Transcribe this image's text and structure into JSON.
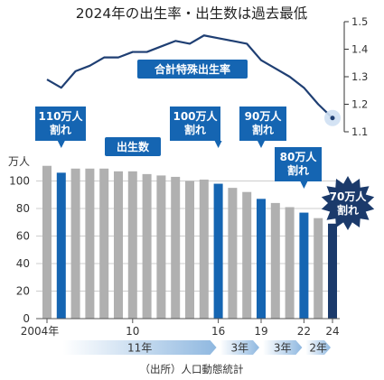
{
  "chart_data": {
    "type": "bar+line",
    "title": "2024年の出生率・出生数は過去最低",
    "bars": {
      "name": "出生数",
      "unit": "万人",
      "ylim": [
        0,
        120
      ],
      "yticks": [
        0,
        20,
        40,
        60,
        80,
        100
      ],
      "x": [
        2004,
        2005,
        2006,
        2007,
        2008,
        2009,
        2010,
        2011,
        2012,
        2013,
        2014,
        2015,
        2016,
        2017,
        2018,
        2019,
        2020,
        2021,
        2022,
        2023,
        2024
      ],
      "values": [
        111,
        106,
        109,
        109,
        109,
        107,
        107,
        105,
        104,
        103,
        100,
        101,
        98,
        95,
        92,
        87,
        84,
        81,
        77,
        73,
        69
      ],
      "highlight_years": [
        2005,
        2016,
        2019,
        2022
      ]
    },
    "line": {
      "name": "合計特殊出生率",
      "ylim": [
        1.1,
        1.5
      ],
      "yticks": [
        "1.1",
        "1.2",
        "1.3",
        "1.4",
        "1.5"
      ],
      "x": [
        2004,
        2005,
        2006,
        2007,
        2008,
        2009,
        2010,
        2011,
        2012,
        2013,
        2014,
        2015,
        2016,
        2017,
        2018,
        2019,
        2020,
        2021,
        2022,
        2023,
        2024
      ],
      "values": [
        1.29,
        1.26,
        1.32,
        1.34,
        1.37,
        1.37,
        1.39,
        1.39,
        1.41,
        1.43,
        1.42,
        1.45,
        1.44,
        1.43,
        1.42,
        1.36,
        1.33,
        1.3,
        1.26,
        1.2,
        1.15
      ]
    },
    "xtick_labels": [
      {
        "year": 2004,
        "label": "2004年"
      },
      {
        "year": 2010,
        "label": "10"
      },
      {
        "year": 2016,
        "label": "16"
      },
      {
        "year": 2019,
        "label": "19"
      },
      {
        "year": 2022,
        "label": "22"
      },
      {
        "year": 2024,
        "label": "24"
      }
    ],
    "callouts": [
      {
        "year": 2005,
        "lines": [
          "110万人",
          "割れ"
        ]
      },
      {
        "year": 2016,
        "lines": [
          "100万人",
          "割れ"
        ]
      },
      {
        "year": 2019,
        "lines": [
          "90万人",
          "割れ"
        ]
      },
      {
        "year": 2022,
        "lines": [
          "80万人",
          "割れ"
        ]
      },
      {
        "year": 2024,
        "lines": [
          "70万人",
          "割れ"
        ]
      }
    ],
    "spans": [
      {
        "from": 2005,
        "to": 2016,
        "label": "11年"
      },
      {
        "from": 2016,
        "to": 2019,
        "label": "3年"
      },
      {
        "from": 2019,
        "to": 2022,
        "label": "3年"
      },
      {
        "from": 2022,
        "to": 2024,
        "label": "2年"
      }
    ],
    "source": "（出所）人口動態統計",
    "colors": {
      "bar": "#b0b0b0",
      "highlight": "#1565b2",
      "last": "#1b3a6b",
      "line": "#1f3f73",
      "series_label": "#1565b2"
    }
  }
}
